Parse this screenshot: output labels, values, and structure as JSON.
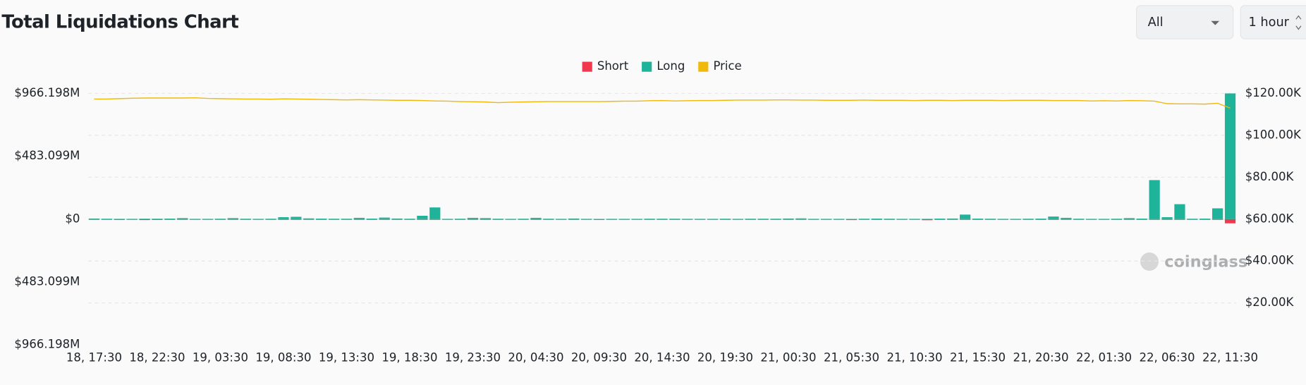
{
  "header": {
    "title": "Total Liquidations Chart",
    "filter": "All",
    "interval": "1 hour"
  },
  "chart_data": {
    "type": "bar",
    "watermark": "coinglass",
    "categories": [
      "18, 17:30",
      null,
      null,
      null,
      null,
      "18, 22:30",
      null,
      null,
      null,
      null,
      "19, 03:30",
      null,
      null,
      null,
      null,
      "19, 08:30",
      null,
      null,
      null,
      null,
      "19, 13:30",
      null,
      null,
      null,
      null,
      "19, 18:30",
      null,
      null,
      null,
      null,
      "19, 23:30",
      null,
      null,
      null,
      null,
      "20, 04:30",
      null,
      null,
      null,
      null,
      "20, 09:30",
      null,
      null,
      null,
      null,
      "20, 14:30",
      null,
      null,
      null,
      null,
      "20, 19:30",
      null,
      null,
      null,
      null,
      "21, 00:30",
      null,
      null,
      null,
      null,
      "21, 05:30",
      null,
      null,
      null,
      null,
      "21, 10:30",
      null,
      null,
      null,
      null,
      "21, 15:30",
      null,
      null,
      null,
      null,
      "21, 20:30",
      null,
      null,
      null,
      null,
      "22, 01:30",
      null,
      null,
      null,
      null,
      "22, 06:30",
      null,
      null,
      null,
      null,
      "22, 11:30"
    ],
    "series": [
      {
        "name": "Short",
        "color": "#f0394f",
        "values": [
          -2,
          -2,
          -6,
          -2,
          -7,
          -6,
          -2,
          -1,
          -2,
          -3,
          -2,
          -1,
          -4,
          -2,
          -2,
          -1,
          -2,
          -2,
          -1,
          -2,
          -2,
          -1,
          -2,
          -2,
          -1,
          -2,
          -2,
          -1,
          -2,
          -2,
          -1,
          -2,
          -2,
          -1,
          -2,
          -2,
          -1,
          -2,
          -2,
          -2,
          -6,
          -2,
          -2,
          -2,
          -1,
          -2,
          -2,
          -2,
          -1,
          -2,
          -2,
          -2,
          -1,
          -2,
          -2,
          -2,
          -1,
          -2,
          -2,
          -2,
          -7,
          -2,
          -2,
          -2,
          -1,
          -2,
          -8,
          -2,
          -2,
          -1,
          -2,
          -2,
          -2,
          -1,
          -2,
          -2,
          -2,
          -1,
          -2,
          -2,
          -2,
          -1,
          -2,
          -2,
          -2,
          -1,
          -2,
          -2,
          -2,
          -1,
          -32
        ]
      },
      {
        "name": "Long",
        "color": "#1fb39a",
        "values": [
          5,
          3,
          2,
          2,
          3,
          3,
          4,
          8,
          2,
          2,
          3,
          8,
          3,
          2,
          3,
          15,
          18,
          6,
          4,
          3,
          3,
          10,
          4,
          12,
          5,
          3,
          26,
          90,
          2,
          3,
          10,
          8,
          3,
          2,
          3,
          10,
          3,
          2,
          5,
          2,
          1,
          2,
          2,
          2,
          3,
          3,
          3,
          2,
          2,
          2,
          3,
          2,
          3,
          3,
          3,
          5,
          6,
          2,
          2,
          2,
          1,
          3,
          4,
          3,
          2,
          2,
          2,
          4,
          5,
          35,
          4,
          3,
          2,
          2,
          3,
          4,
          20,
          10,
          3,
          2,
          2,
          3,
          8,
          4,
          300,
          15,
          115,
          3,
          4,
          83,
          966
        ]
      },
      {
        "name": "Price",
        "color": "#f0b90b",
        "axis": "y2",
        "values": [
          117300,
          117300,
          117500,
          117700,
          117800,
          117800,
          117800,
          117800,
          117900,
          117600,
          117500,
          117400,
          117300,
          117300,
          117200,
          117400,
          117300,
          117200,
          117100,
          117000,
          116900,
          117000,
          116900,
          116800,
          116700,
          116700,
          116600,
          116400,
          116300,
          116100,
          116000,
          115900,
          115600,
          115800,
          115900,
          116000,
          116100,
          116100,
          116100,
          116100,
          116100,
          116200,
          116300,
          116300,
          116500,
          116600,
          116400,
          116500,
          116600,
          116600,
          116700,
          116800,
          116800,
          116800,
          116900,
          116900,
          116800,
          116800,
          116700,
          116700,
          116700,
          116800,
          116700,
          116700,
          116700,
          116600,
          116700,
          116700,
          116600,
          116700,
          116700,
          116700,
          116600,
          116700,
          116700,
          116700,
          116600,
          116600,
          116600,
          116400,
          116500,
          116400,
          116600,
          116500,
          116300,
          115100,
          115000,
          115000,
          114900,
          115300,
          113000
        ]
      }
    ],
    "ylim": [
      -966.198,
      966.198
    ],
    "yticks": [
      {
        "value": -966.198,
        "label": "$966.198M"
      },
      {
        "value": -483.099,
        "label": "$483.099M"
      },
      {
        "value": 0,
        "label": "$0"
      },
      {
        "value": 483.099,
        "label": "$483.099M"
      },
      {
        "value": 966.198,
        "label": "$966.198M"
      }
    ],
    "y2lim": [
      0,
      120000
    ],
    "y2ticks": [
      {
        "value": 20000,
        "label": "$20.00K"
      },
      {
        "value": 40000,
        "label": "$40.00K"
      },
      {
        "value": 60000,
        "label": "$60.00K"
      },
      {
        "value": 80000,
        "label": "$80.00K"
      },
      {
        "value": 100000,
        "label": "$100.00K"
      },
      {
        "value": 120000,
        "label": "$120.00K"
      }
    ],
    "grid": true
  }
}
